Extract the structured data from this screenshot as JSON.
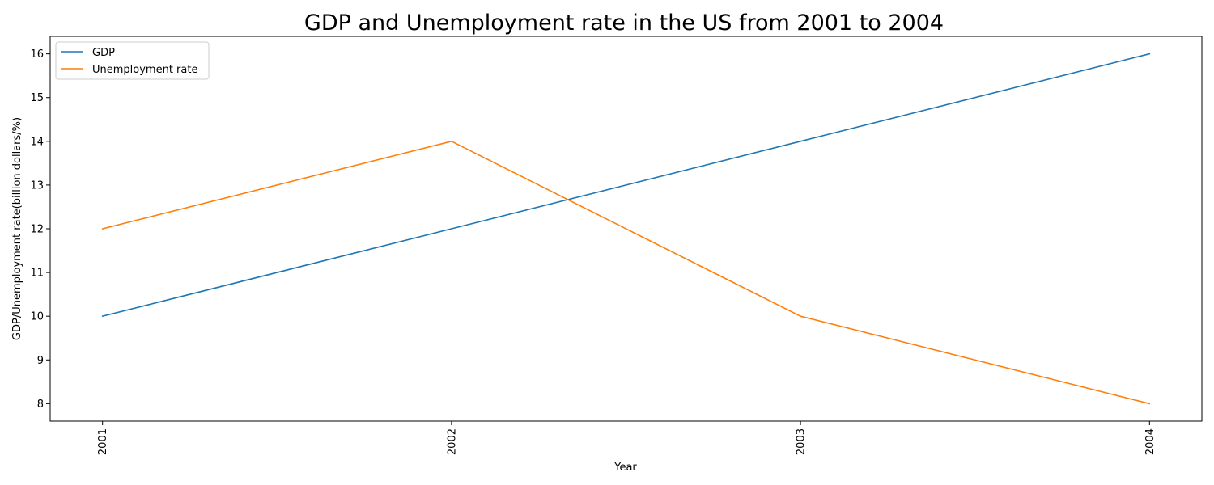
{
  "chart_data": {
    "type": "line",
    "title": "GDP and Unemployment rate in the US from 2001 to 2004",
    "xlabel": "Year",
    "ylabel": "GDP/Unemployment rate(billion dollars/%)",
    "categories": [
      "2001",
      "2002",
      "2003",
      "2004"
    ],
    "series": [
      {
        "name": "GDP",
        "values": [
          10,
          12,
          14,
          16
        ],
        "color": "#1f77b4"
      },
      {
        "name": "Unemployment rate",
        "values": [
          12,
          14,
          10,
          8
        ],
        "color": "#ff7f0e"
      }
    ],
    "yticks": [
      8,
      9,
      10,
      11,
      12,
      13,
      14,
      15,
      16
    ],
    "ylim": [
      7.6,
      16.4
    ],
    "grid": false,
    "legend_position": "upper-left"
  }
}
